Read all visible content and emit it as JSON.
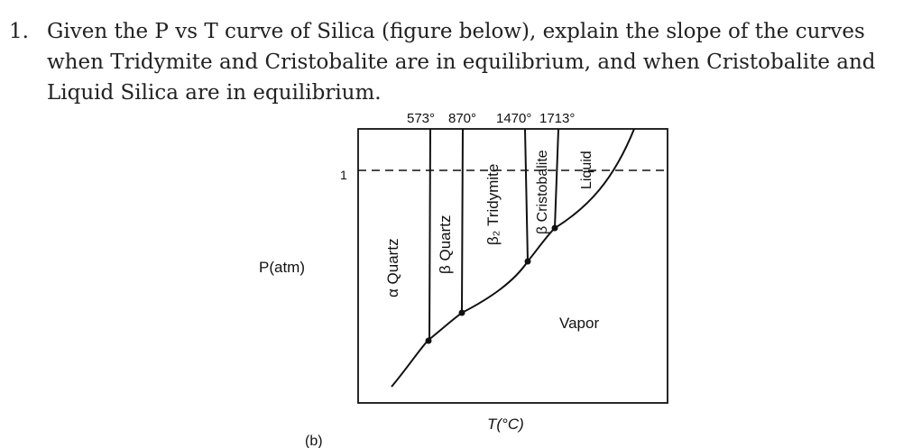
{
  "question": {
    "number": "1.",
    "text": "Given the P vs T curve of Silica (figure below), explain the slope of the curves when Tridymite and Cristobalite are in equilibrium, and when Cristobalite and Liquid Silica are in equilibrium."
  },
  "figure": {
    "top_temps": [
      "573°",
      "870°",
      "1470°",
      "1713°"
    ],
    "y_axis_label": "P(atm)",
    "x_axis_label": "T(°C)",
    "pressure_tick": "1",
    "phases": {
      "alpha_quartz": "α Quartz",
      "beta_quartz": "β Quartz",
      "beta2_tridymite": "β₂ Tridymite",
      "beta_cristobalite": "β Cristobalite",
      "liquid": "Liquid",
      "vapor": "Vapor"
    },
    "partial_label": "(b)"
  },
  "colors": {
    "text": "#222222",
    "lines": "#111111",
    "background": "#ffffff"
  }
}
